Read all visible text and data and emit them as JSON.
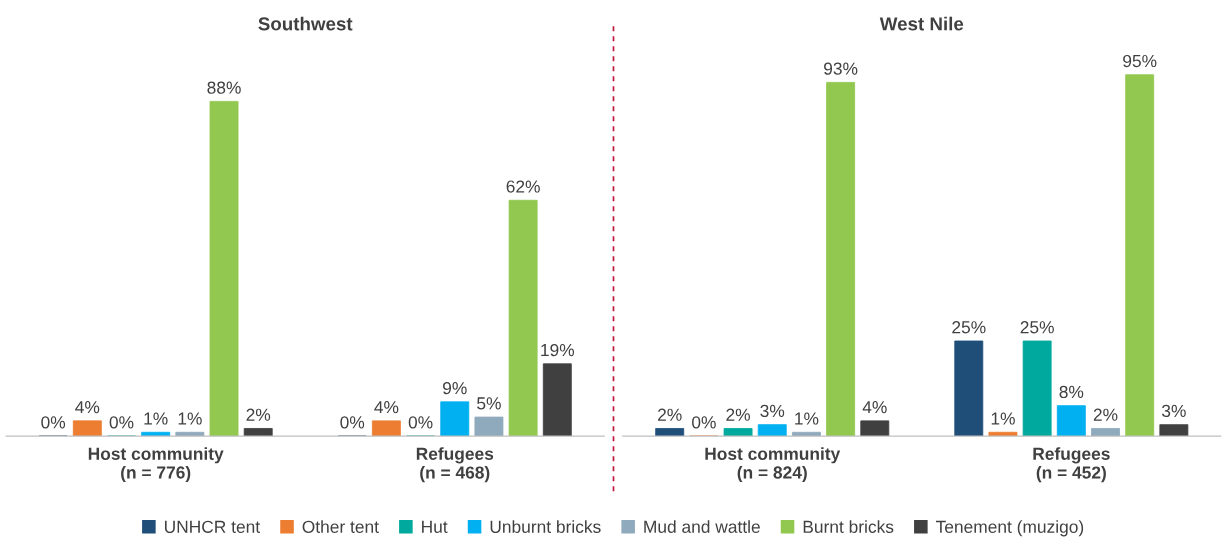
{
  "chart_data": [
    {
      "type": "bar",
      "title": "Southwest",
      "categories": [
        "Host community\n(n = 776)",
        "Refugees\n(n = 468)"
      ],
      "legend": "bottom",
      "grid": false,
      "series": [
        {
          "name": "UNHCR tent",
          "color": "#1f4e79",
          "values": [
            0,
            0
          ],
          "value_labels": [
            "0%",
            "0%"
          ]
        },
        {
          "name": "Other tent",
          "color": "#ed7d31",
          "values": [
            4,
            4
          ],
          "value_labels": [
            "4%",
            "4%"
          ]
        },
        {
          "name": "Hut",
          "color": "#00a99d",
          "values": [
            0,
            0
          ],
          "value_labels": [
            "0%",
            "0%"
          ]
        },
        {
          "name": "Unburnt bricks",
          "color": "#00b0f0",
          "values": [
            1,
            9
          ],
          "value_labels": [
            "1%",
            "9%"
          ]
        },
        {
          "name": "Mud and wattle",
          "color": "#8faabc",
          "values": [
            1,
            5
          ],
          "value_labels": [
            "1%",
            "5%"
          ]
        },
        {
          "name": "Burnt bricks",
          "color": "#92c84f",
          "values": [
            88,
            62
          ],
          "value_labels": [
            "88%",
            "62%"
          ]
        },
        {
          "name": "Tenement (muzigo)",
          "color": "#404040",
          "values": [
            2,
            19
          ],
          "value_labels": [
            "2%",
            "19%"
          ]
        }
      ]
    },
    {
      "type": "bar",
      "title": "West Nile",
      "categories": [
        "Host community\n(n = 824)",
        "Refugees\n(n = 452)"
      ],
      "grid": false,
      "series": [
        {
          "color": "#1f4e79",
          "values": [
            2,
            25
          ],
          "value_labels": [
            "2%",
            "25%"
          ]
        },
        {
          "color": "#ed7d31",
          "values": [
            0,
            1
          ],
          "value_labels": [
            "0%",
            "1%"
          ]
        },
        {
          "color": "#00a99d",
          "values": [
            2,
            25
          ],
          "value_labels": [
            "2%",
            "25%"
          ]
        },
        {
          "color": "#00b0f0",
          "values": [
            3,
            8
          ],
          "value_labels": [
            "3%",
            "8%"
          ]
        },
        {
          "color": "#8faabc",
          "values": [
            1,
            2
          ],
          "value_labels": [
            "1%",
            "2%"
          ]
        },
        {
          "color": "#92c84f",
          "values": [
            93,
            95
          ],
          "value_labels": [
            "93%",
            "95%"
          ]
        },
        {
          "color": "#404040",
          "values": [
            4,
            3
          ],
          "value_labels": [
            "4%",
            "3%"
          ]
        }
      ]
    }
  ]
}
